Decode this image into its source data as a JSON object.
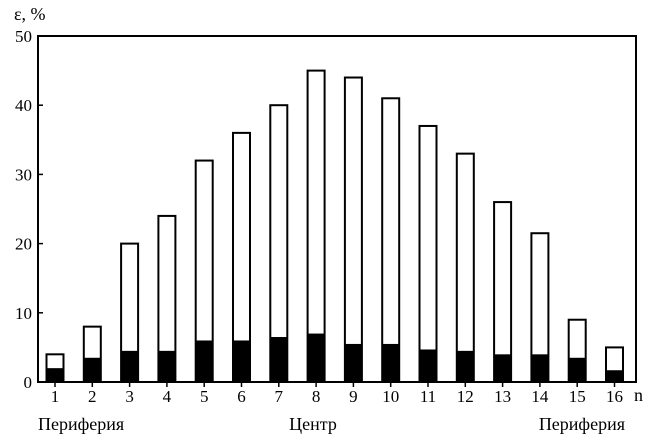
{
  "chart_data": {
    "type": "bar",
    "stacked": true,
    "categories": [
      "1",
      "2",
      "3",
      "4",
      "5",
      "6",
      "7",
      "8",
      "9",
      "10",
      "11",
      "12",
      "13",
      "14",
      "15",
      "16"
    ],
    "series": [
      {
        "values": [
          2,
          3.5,
          4.5,
          4.5,
          6,
          6,
          6.5,
          7,
          5.5,
          5.5,
          4.7,
          4.5,
          4,
          4,
          3.5,
          1.7
        ],
        "color": "#000000"
      },
      {
        "values": [
          2,
          4.5,
          15.5,
          19.5,
          26,
          30,
          33.5,
          38,
          38.5,
          35.5,
          32.3,
          28.5,
          22,
          17.5,
          5.5,
          3.3
        ],
        "color": "#ffffff"
      }
    ],
    "totals": [
      4,
      8,
      20,
      24,
      32,
      36,
      40,
      45,
      44,
      41,
      37,
      33,
      26,
      21.5,
      9,
      5
    ],
    "ylabel": "ε, %",
    "xlabel": "n",
    "yticks": [
      0,
      10,
      20,
      30,
      40,
      50
    ],
    "ylim": [
      0,
      50
    ],
    "grid": false,
    "region_labels": {
      "left": "Периферия",
      "center": "Центр",
      "right": "Периферия"
    }
  }
}
